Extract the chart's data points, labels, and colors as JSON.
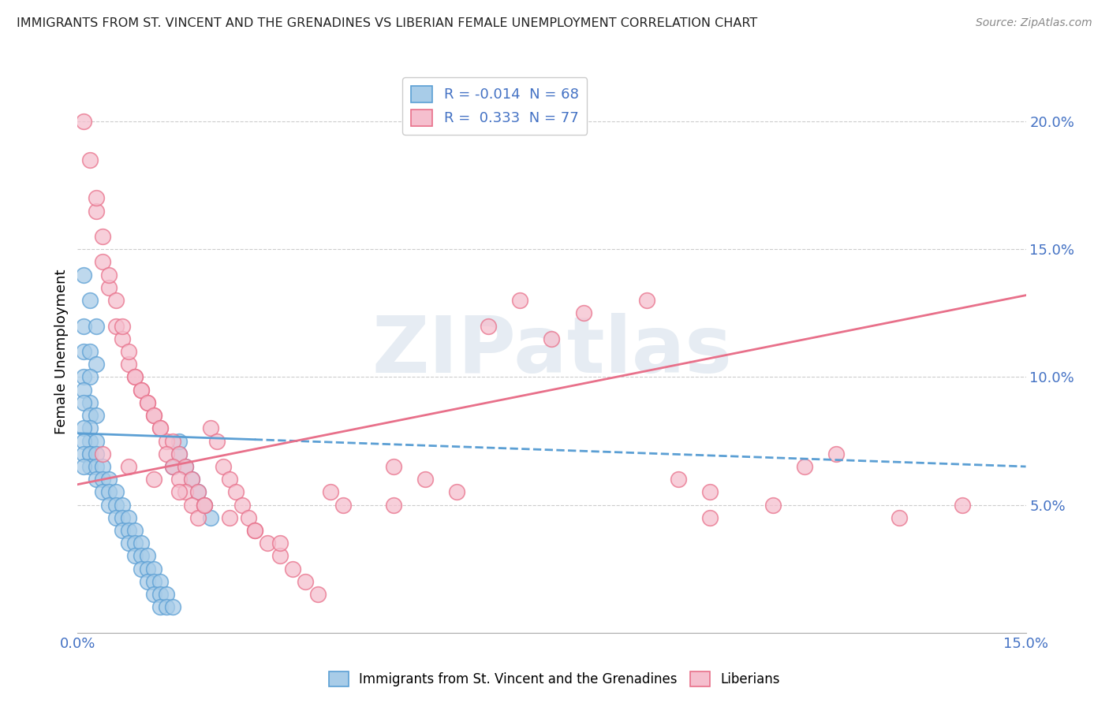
{
  "title": "IMMIGRANTS FROM ST. VINCENT AND THE GRENADINES VS LIBERIAN FEMALE UNEMPLOYMENT CORRELATION CHART",
  "source": "Source: ZipAtlas.com",
  "ylabel_label": "Female Unemployment",
  "legend_blue_r": "R = -0.014",
  "legend_blue_n": "N = 68",
  "legend_pink_r": "R =  0.333",
  "legend_pink_n": "N = 77",
  "blue_color": "#a8cce8",
  "pink_color": "#f5bfce",
  "blue_edge_color": "#5b9fd4",
  "pink_edge_color": "#e8708a",
  "blue_line_color": "#5b9fd4",
  "pink_line_color": "#e8708a",
  "watermark": "ZIPatlas",
  "xmin": 0.0,
  "xmax": 0.15,
  "ymin": 0.0,
  "ymax": 0.22,
  "y_ticks": [
    0.05,
    0.1,
    0.15,
    0.2
  ],
  "y_tick_labels": [
    "5.0%",
    "10.0%",
    "15.0%",
    "20.0%"
  ],
  "blue_trend_x": [
    0.0,
    0.15
  ],
  "blue_trend_y": [
    0.078,
    0.065
  ],
  "pink_trend_x": [
    0.0,
    0.15
  ],
  "pink_trend_y": [
    0.058,
    0.132
  ],
  "blue_scatter_x": [
    0.001,
    0.002,
    0.001,
    0.003,
    0.001,
    0.002,
    0.003,
    0.001,
    0.002,
    0.001,
    0.002,
    0.001,
    0.002,
    0.003,
    0.002,
    0.001,
    0.002,
    0.001,
    0.003,
    0.002,
    0.001,
    0.002,
    0.003,
    0.002,
    0.001,
    0.003,
    0.004,
    0.003,
    0.004,
    0.005,
    0.004,
    0.005,
    0.006,
    0.005,
    0.006,
    0.007,
    0.006,
    0.007,
    0.008,
    0.007,
    0.008,
    0.009,
    0.008,
    0.009,
    0.01,
    0.009,
    0.01,
    0.011,
    0.01,
    0.011,
    0.012,
    0.011,
    0.012,
    0.013,
    0.012,
    0.013,
    0.014,
    0.013,
    0.014,
    0.015,
    0.015,
    0.016,
    0.016,
    0.017,
    0.018,
    0.019,
    0.02,
    0.021
  ],
  "blue_scatter_y": [
    0.14,
    0.13,
    0.12,
    0.12,
    0.11,
    0.11,
    0.105,
    0.1,
    0.1,
    0.095,
    0.09,
    0.09,
    0.085,
    0.085,
    0.08,
    0.08,
    0.075,
    0.075,
    0.075,
    0.07,
    0.07,
    0.07,
    0.07,
    0.065,
    0.065,
    0.065,
    0.065,
    0.06,
    0.06,
    0.06,
    0.055,
    0.055,
    0.055,
    0.05,
    0.05,
    0.05,
    0.045,
    0.045,
    0.045,
    0.04,
    0.04,
    0.04,
    0.035,
    0.035,
    0.035,
    0.03,
    0.03,
    0.03,
    0.025,
    0.025,
    0.025,
    0.02,
    0.02,
    0.02,
    0.015,
    0.015,
    0.015,
    0.01,
    0.01,
    0.01,
    0.065,
    0.07,
    0.075,
    0.065,
    0.06,
    0.055,
    0.05,
    0.045
  ],
  "pink_scatter_x": [
    0.001,
    0.002,
    0.003,
    0.004,
    0.003,
    0.005,
    0.004,
    0.006,
    0.005,
    0.007,
    0.006,
    0.008,
    0.007,
    0.009,
    0.008,
    0.01,
    0.009,
    0.011,
    0.01,
    0.012,
    0.011,
    0.013,
    0.012,
    0.014,
    0.013,
    0.015,
    0.014,
    0.016,
    0.015,
    0.017,
    0.016,
    0.018,
    0.017,
    0.019,
    0.018,
    0.02,
    0.019,
    0.021,
    0.022,
    0.023,
    0.024,
    0.025,
    0.026,
    0.027,
    0.028,
    0.03,
    0.032,
    0.034,
    0.036,
    0.038,
    0.04,
    0.042,
    0.05,
    0.055,
    0.06,
    0.065,
    0.07,
    0.075,
    0.08,
    0.09,
    0.095,
    0.1,
    0.11,
    0.115,
    0.12,
    0.13,
    0.14,
    0.004,
    0.008,
    0.012,
    0.016,
    0.02,
    0.024,
    0.028,
    0.032,
    0.05,
    0.1
  ],
  "pink_scatter_y": [
    0.2,
    0.185,
    0.165,
    0.145,
    0.17,
    0.135,
    0.155,
    0.12,
    0.14,
    0.115,
    0.13,
    0.105,
    0.12,
    0.1,
    0.11,
    0.095,
    0.1,
    0.09,
    0.095,
    0.085,
    0.09,
    0.08,
    0.085,
    0.075,
    0.08,
    0.075,
    0.07,
    0.07,
    0.065,
    0.065,
    0.06,
    0.06,
    0.055,
    0.055,
    0.05,
    0.05,
    0.045,
    0.08,
    0.075,
    0.065,
    0.06,
    0.055,
    0.05,
    0.045,
    0.04,
    0.035,
    0.03,
    0.025,
    0.02,
    0.015,
    0.055,
    0.05,
    0.065,
    0.06,
    0.055,
    0.12,
    0.13,
    0.115,
    0.125,
    0.13,
    0.06,
    0.055,
    0.05,
    0.065,
    0.07,
    0.045,
    0.05,
    0.07,
    0.065,
    0.06,
    0.055,
    0.05,
    0.045,
    0.04,
    0.035,
    0.05,
    0.045
  ]
}
